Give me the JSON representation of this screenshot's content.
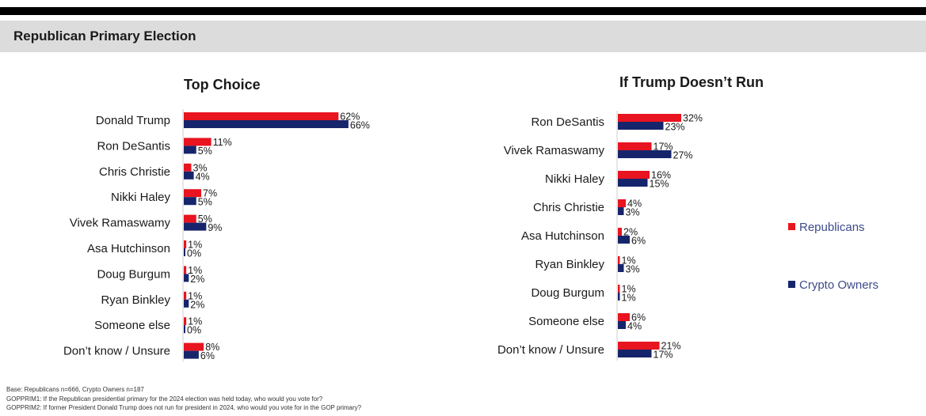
{
  "header": {
    "title": "Republican Primary Election"
  },
  "colors": {
    "republicans": "#e8141f",
    "crypto_owners": "#16256b"
  },
  "legend": {
    "republicans": "Republicans",
    "crypto_owners": "Crypto Owners"
  },
  "chart_data": [
    {
      "type": "bar",
      "orientation": "horizontal",
      "title": "Top Choice",
      "categories": [
        "Donald Trump",
        "Ron DeSantis",
        "Chris Christie",
        "Nikki Haley",
        "Vivek Ramaswamy",
        "Asa Hutchinson",
        "Doug Burgum",
        "Ryan Binkley",
        "Someone else",
        "Don’t know / Unsure"
      ],
      "series": [
        {
          "name": "Republicans",
          "values": [
            62,
            11,
            3,
            7,
            5,
            1,
            1,
            1,
            1,
            8
          ]
        },
        {
          "name": "Crypto Owners",
          "values": [
            66,
            5,
            4,
            5,
            9,
            0,
            2,
            2,
            0,
            6
          ]
        }
      ],
      "value_suffix": "%"
    },
    {
      "type": "bar",
      "orientation": "horizontal",
      "title": "If Trump Doesn’t Run",
      "categories": [
        "Ron DeSantis",
        "Vivek Ramaswamy",
        "Nikki Haley",
        "Chris Christie",
        "Asa Hutchinson",
        "Ryan Binkley",
        "Doug Burgum",
        "Someone else",
        "Don’t know / Unsure"
      ],
      "series": [
        {
          "name": "Republicans",
          "values": [
            32,
            17,
            16,
            4,
            2,
            1,
            1,
            6,
            21
          ]
        },
        {
          "name": "Crypto Owners",
          "values": [
            23,
            27,
            15,
            3,
            6,
            3,
            1,
            4,
            17
          ]
        }
      ],
      "value_suffix": "%"
    }
  ],
  "footer": {
    "base": "Base: Republicans n=666, Crypto Owners n=187",
    "q1": "GOPPRIM1: If the Republican presidential primary for the 2024 election was held today, who would you vote for?",
    "q2": "GOPPRIM2: If former President Donald Trump does not run for president in 2024, who would you vote for in the GOP primary?"
  }
}
